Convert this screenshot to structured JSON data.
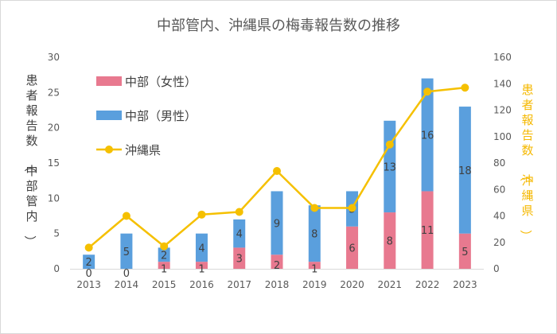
{
  "chart_data": {
    "type": "bar+line",
    "title": "中部管内、沖縄県の梅毒報告数の推移",
    "categories": [
      "2013",
      "2014",
      "2015",
      "2016",
      "2017",
      "2018",
      "2019",
      "2020",
      "2021",
      "2022",
      "2023"
    ],
    "series": [
      {
        "name": "中部（女性）",
        "type": "stacked-bar",
        "axis": "left",
        "color": "#e8798f",
        "values": [
          0,
          0,
          1,
          1,
          3,
          2,
          1,
          6,
          8,
          11,
          5
        ]
      },
      {
        "name": "中部（男性）",
        "type": "stacked-bar",
        "axis": "left",
        "color": "#5a9fdd",
        "values": [
          2,
          5,
          2,
          4,
          4,
          9,
          8,
          5,
          13,
          16,
          18
        ]
      },
      {
        "name": "沖縄県",
        "type": "line",
        "axis": "right",
        "color": "#f5c000",
        "values": [
          16,
          40,
          17,
          41,
          43,
          74,
          46,
          46,
          94,
          134,
          137
        ]
      }
    ],
    "ylabel_left": "患者報告数（中部管内）",
    "ylabel_right": "患者報告数（沖縄県）",
    "ylim_left": [
      0,
      30
    ],
    "ylim_right": [
      0,
      160
    ],
    "yticks_left": [
      0,
      5,
      10,
      15,
      20,
      25,
      30
    ],
    "yticks_right": [
      0,
      20,
      40,
      60,
      80,
      100,
      120,
      140,
      160
    ],
    "grid": false,
    "legend_position": "top-left",
    "text_color": "#595959",
    "right_label_color": "#f5b800"
  }
}
